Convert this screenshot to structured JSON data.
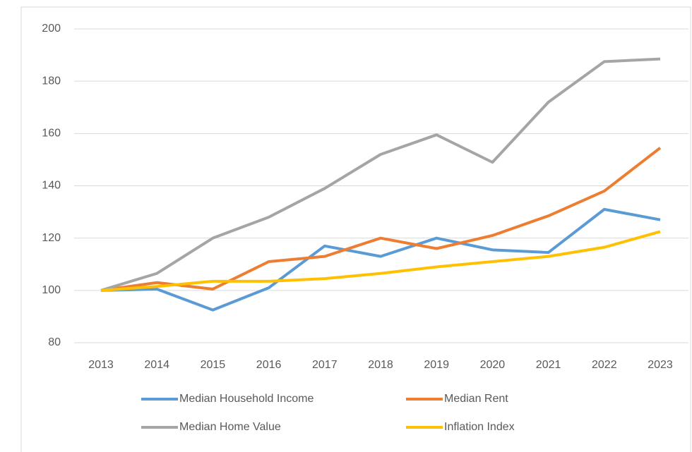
{
  "chart_data": {
    "type": "line",
    "categories": [
      "2013",
      "2014",
      "2015",
      "2016",
      "2017",
      "2018",
      "2019",
      "2020",
      "2021",
      "2022",
      "2023"
    ],
    "series": [
      {
        "name": "Median Household Income",
        "color": "#5b9bd5",
        "values": [
          100,
          100.5,
          92.5,
          101,
          117,
          113,
          120,
          115.5,
          114.5,
          131,
          127
        ]
      },
      {
        "name": "Median Rent",
        "color": "#ed7d31",
        "values": [
          100,
          103,
          100.5,
          111,
          113,
          120,
          116,
          121,
          128.5,
          138,
          154.5
        ]
      },
      {
        "name": "Median Home Value",
        "color": "#a5a5a5",
        "values": [
          100,
          106.5,
          120,
          128,
          139,
          152,
          159.5,
          149,
          172,
          187.5,
          188.5
        ]
      },
      {
        "name": "Inflation Index",
        "color": "#ffc000",
        "values": [
          100,
          101.5,
          103.5,
          103.5,
          104.5,
          106.5,
          109,
          111,
          113,
          116.5,
          122.5
        ]
      }
    ],
    "ylim": [
      80,
      200
    ],
    "yticks": [
      80,
      100,
      120,
      140,
      160,
      180,
      200
    ],
    "grid": true,
    "legend": "bottom"
  }
}
